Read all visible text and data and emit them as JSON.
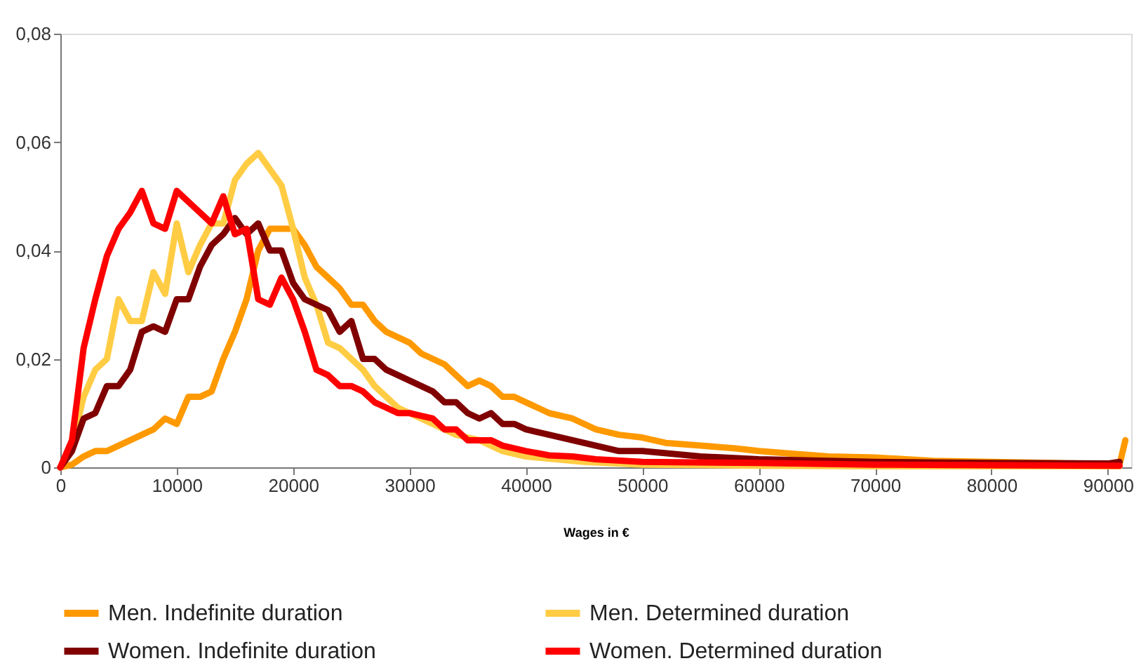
{
  "chart_data": {
    "type": "line",
    "xlabel": "Wages in €",
    "xlim": [
      0,
      92000
    ],
    "xticks": [
      0,
      10000,
      20000,
      30000,
      40000,
      50000,
      60000,
      70000,
      80000,
      90000
    ],
    "ylim": [
      0,
      0.08
    ],
    "yticks": [
      {
        "value": 0,
        "label": "0"
      },
      {
        "value": 0.02,
        "label": "0,02"
      },
      {
        "value": 0.04,
        "label": "0,04"
      },
      {
        "value": 0.06,
        "label": "0,06"
      },
      {
        "value": 0.08,
        "label": "0,08"
      }
    ],
    "grid": false,
    "legend": "bottom",
    "marker": "none",
    "line_style": "solid",
    "series": [
      {
        "name": "Men. Indefinite duration",
        "color": "#ff9900",
        "x": [
          0,
          1000,
          2000,
          3000,
          4000,
          5000,
          6000,
          7000,
          8000,
          9000,
          10000,
          11000,
          12000,
          13000,
          14000,
          15000,
          16000,
          17000,
          18000,
          19000,
          20000,
          21000,
          22000,
          23000,
          24000,
          25000,
          26000,
          27000,
          28000,
          29000,
          30000,
          31000,
          32000,
          33000,
          34000,
          35000,
          36000,
          37000,
          38000,
          39000,
          40000,
          42000,
          44000,
          46000,
          48000,
          50000,
          52000,
          55000,
          58000,
          60000,
          63000,
          66000,
          70000,
          75000,
          80000,
          85000,
          90000,
          91000,
          91500
        ],
        "values": [
          0,
          0.0005,
          0.002,
          0.003,
          0.003,
          0.004,
          0.005,
          0.006,
          0.007,
          0.009,
          0.008,
          0.013,
          0.013,
          0.014,
          0.02,
          0.025,
          0.031,
          0.04,
          0.044,
          0.044,
          0.044,
          0.041,
          0.037,
          0.035,
          0.033,
          0.03,
          0.03,
          0.027,
          0.025,
          0.024,
          0.023,
          0.021,
          0.02,
          0.019,
          0.017,
          0.015,
          0.016,
          0.015,
          0.013,
          0.013,
          0.012,
          0.01,
          0.009,
          0.007,
          0.006,
          0.0055,
          0.0045,
          0.004,
          0.0035,
          0.003,
          0.0025,
          0.002,
          0.0018,
          0.0012,
          0.001,
          0.0008,
          0.0006,
          0.0005,
          0.005
        ]
      },
      {
        "name": "Men. Determined duration",
        "color": "#ffcc44",
        "x": [
          0,
          1000,
          2000,
          3000,
          4000,
          5000,
          6000,
          7000,
          8000,
          9000,
          10000,
          11000,
          12000,
          13000,
          14000,
          15000,
          16000,
          17000,
          18000,
          19000,
          20000,
          21000,
          22000,
          23000,
          24000,
          25000,
          26000,
          27000,
          28000,
          29000,
          30000,
          32000,
          34000,
          36000,
          38000,
          40000,
          45000,
          50000,
          60000,
          70000,
          91000
        ],
        "values": [
          0,
          0.004,
          0.013,
          0.018,
          0.02,
          0.031,
          0.027,
          0.027,
          0.036,
          0.032,
          0.045,
          0.036,
          0.041,
          0.045,
          0.045,
          0.053,
          0.056,
          0.058,
          0.055,
          0.052,
          0.044,
          0.035,
          0.03,
          0.023,
          0.022,
          0.02,
          0.018,
          0.015,
          0.013,
          0.011,
          0.01,
          0.008,
          0.006,
          0.005,
          0.003,
          0.002,
          0.001,
          0.0005,
          0.0003,
          0.0002,
          0.0002
        ]
      },
      {
        "name": "Women. Indefinite duration",
        "color": "#800000",
        "x": [
          0,
          1000,
          2000,
          3000,
          4000,
          5000,
          6000,
          7000,
          8000,
          9000,
          10000,
          11000,
          12000,
          13000,
          14000,
          15000,
          16000,
          17000,
          18000,
          19000,
          20000,
          21000,
          22000,
          23000,
          24000,
          25000,
          26000,
          27000,
          28000,
          29000,
          30000,
          31000,
          32000,
          33000,
          34000,
          35000,
          36000,
          37000,
          38000,
          39000,
          40000,
          42000,
          44000,
          46000,
          48000,
          50000,
          55000,
          60000,
          70000,
          80000,
          90000,
          91000
        ],
        "values": [
          0,
          0.003,
          0.009,
          0.01,
          0.015,
          0.015,
          0.018,
          0.025,
          0.026,
          0.025,
          0.031,
          0.031,
          0.037,
          0.041,
          0.043,
          0.046,
          0.043,
          0.045,
          0.04,
          0.04,
          0.034,
          0.031,
          0.03,
          0.029,
          0.025,
          0.027,
          0.02,
          0.02,
          0.018,
          0.017,
          0.016,
          0.015,
          0.014,
          0.012,
          0.012,
          0.01,
          0.009,
          0.01,
          0.008,
          0.008,
          0.007,
          0.006,
          0.005,
          0.004,
          0.003,
          0.003,
          0.002,
          0.0015,
          0.001,
          0.0008,
          0.0007,
          0.001
        ]
      },
      {
        "name": "Women. Determined duration",
        "color": "#ff0000",
        "x": [
          0,
          1000,
          2000,
          3000,
          4000,
          5000,
          6000,
          7000,
          8000,
          9000,
          10000,
          11000,
          12000,
          13000,
          14000,
          15000,
          16000,
          17000,
          18000,
          19000,
          20000,
          21000,
          22000,
          23000,
          24000,
          25000,
          26000,
          27000,
          28000,
          29000,
          30000,
          31000,
          32000,
          33000,
          34000,
          35000,
          36000,
          37000,
          38000,
          40000,
          42000,
          44000,
          46000,
          50000,
          60000,
          70000,
          80000,
          91000
        ],
        "values": [
          0,
          0.005,
          0.022,
          0.031,
          0.039,
          0.044,
          0.047,
          0.051,
          0.045,
          0.044,
          0.051,
          0.049,
          0.047,
          0.045,
          0.05,
          0.043,
          0.044,
          0.031,
          0.03,
          0.035,
          0.031,
          0.025,
          0.018,
          0.017,
          0.015,
          0.015,
          0.014,
          0.012,
          0.011,
          0.01,
          0.01,
          0.0095,
          0.009,
          0.007,
          0.007,
          0.005,
          0.005,
          0.005,
          0.004,
          0.003,
          0.0022,
          0.002,
          0.0015,
          0.001,
          0.0008,
          0.0005,
          0.0004,
          0.0003
        ]
      }
    ]
  }
}
